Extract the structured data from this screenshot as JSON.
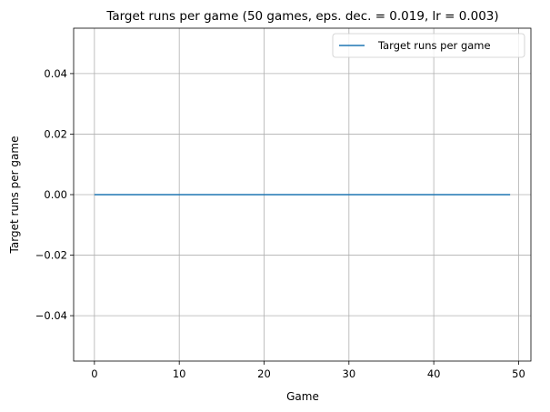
{
  "chart_data": {
    "type": "line",
    "title": "Target runs per game (50 games, eps. dec. = 0.019, lr = 0.003)",
    "xlabel": "Game",
    "ylabel": "Target runs per game",
    "xlim": [
      -2.45,
      51.45
    ],
    "ylim": [
      -0.055,
      0.055
    ],
    "x_ticks": [
      0,
      10,
      20,
      30,
      40,
      50
    ],
    "y_ticks": [
      -0.04,
      -0.02,
      0.0,
      0.02,
      0.04
    ],
    "x_tick_labels": [
      "0",
      "10",
      "20",
      "30",
      "40",
      "50"
    ],
    "y_tick_labels": [
      "−0.04",
      "−0.02",
      "0.00",
      "0.02",
      "0.04"
    ],
    "grid": true,
    "legend_position": "top-right",
    "series": [
      {
        "name": "Target runs per game",
        "color": "#1f77b4",
        "x": [
          0,
          1,
          2,
          3,
          4,
          5,
          6,
          7,
          8,
          9,
          10,
          11,
          12,
          13,
          14,
          15,
          16,
          17,
          18,
          19,
          20,
          21,
          22,
          23,
          24,
          25,
          26,
          27,
          28,
          29,
          30,
          31,
          32,
          33,
          34,
          35,
          36,
          37,
          38,
          39,
          40,
          41,
          42,
          43,
          44,
          45,
          46,
          47,
          48,
          49
        ],
        "values": [
          0,
          0,
          0,
          0,
          0,
          0,
          0,
          0,
          0,
          0,
          0,
          0,
          0,
          0,
          0,
          0,
          0,
          0,
          0,
          0,
          0,
          0,
          0,
          0,
          0,
          0,
          0,
          0,
          0,
          0,
          0,
          0,
          0,
          0,
          0,
          0,
          0,
          0,
          0,
          0,
          0,
          0,
          0,
          0,
          0,
          0,
          0,
          0,
          0,
          0
        ]
      }
    ]
  }
}
